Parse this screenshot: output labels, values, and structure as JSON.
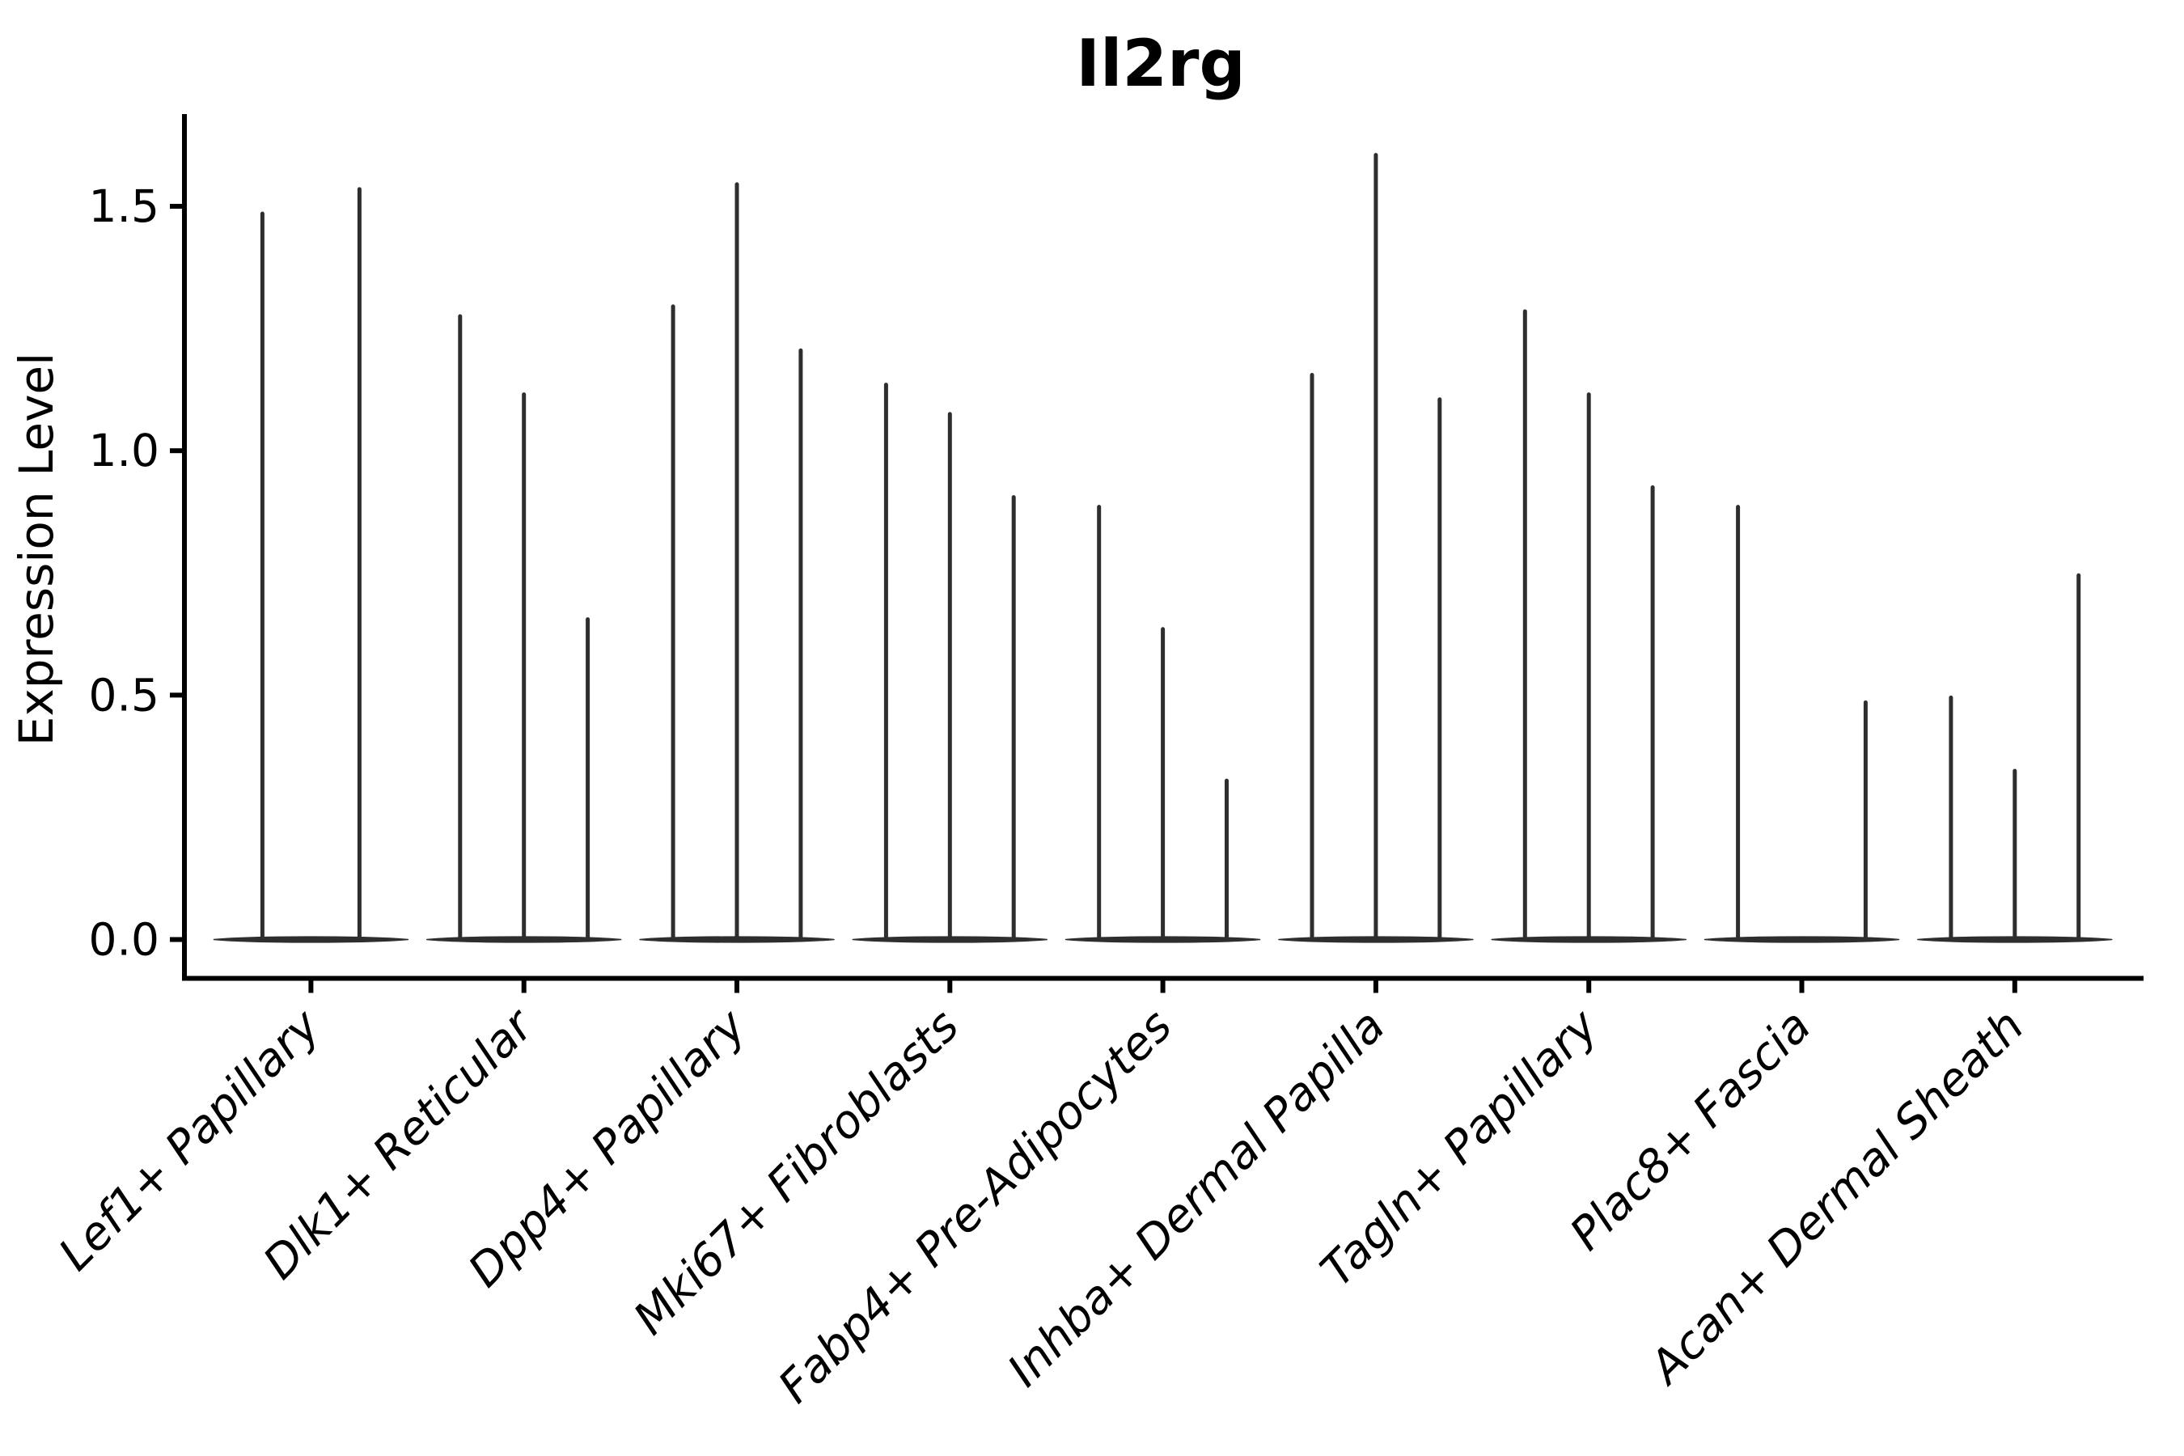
{
  "title": "Il2rg",
  "y_axis": {
    "label": "Expression Level",
    "tick_labels": [
      "0.0",
      "0.5",
      "1.0",
      "1.5"
    ]
  },
  "colors": {
    "violin": "#2e2e2e",
    "axis": "#000000",
    "text": "#000000",
    "background": "#ffffff"
  },
  "chart_data": {
    "type": "violin",
    "title": "Il2rg",
    "xlabel": "",
    "ylabel": "Expression Level",
    "yticks": [
      0.0,
      0.5,
      1.0,
      1.5
    ],
    "ylim": [
      -0.08,
      1.71
    ],
    "grid": false,
    "legend_position": "none",
    "x_tick_label_rotation_deg": 45,
    "x_tick_label_style": "italic",
    "categories": [
      "Lef1+ Papillary",
      "Dlk1+ Reticular",
      "Dpp4+ Papillary",
      "Mki67+ Fibroblasts",
      "Fabp4+ Pre-Adipocytes",
      "Inhba+ Dermal Papilla",
      "Tagln+ Papillary",
      "Plac8+ Fascia",
      "Acan+ Dermal Sheath"
    ],
    "violin_min_expression": 0,
    "series_note": "Each category shows thin violins (spikes) whose tops mark the max expression; all violins have dense mass at 0 forming the flat baseline.",
    "violin_max_expression": [
      [
        1.49,
        1.54
      ],
      [
        1.28,
        1.12,
        0.66
      ],
      [
        1.3,
        1.55,
        1.21
      ],
      [
        1.14,
        1.08,
        0.91
      ],
      [
        0.89,
        0.64,
        0.33
      ],
      [
        1.16,
        1.61,
        1.11
      ],
      [
        1.29,
        1.12,
        0.93
      ],
      [
        0.89,
        0.0,
        0.49
      ],
      [
        0.5,
        0.35,
        0.75
      ]
    ]
  }
}
